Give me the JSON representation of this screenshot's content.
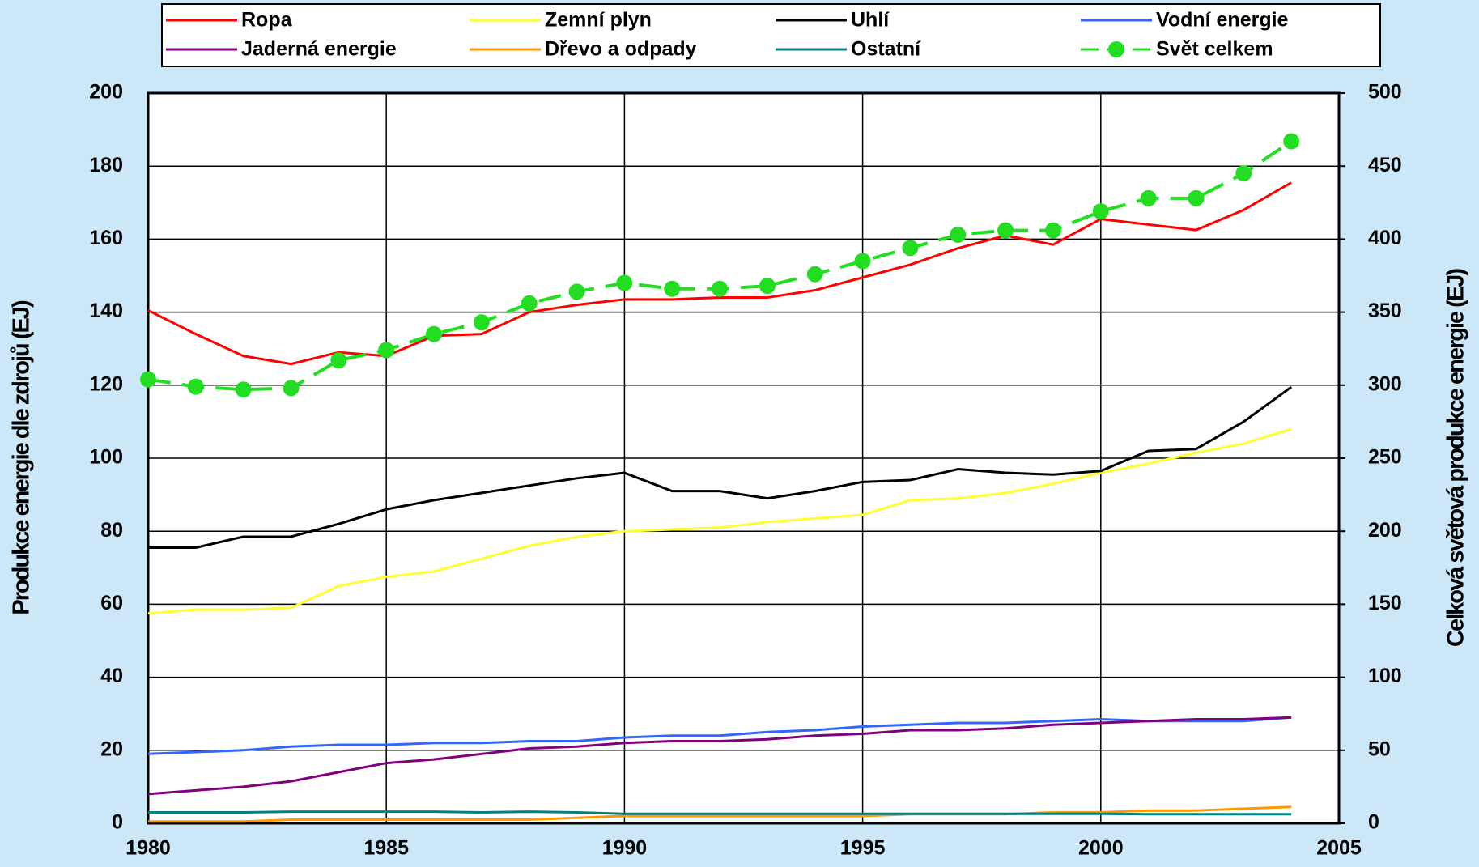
{
  "chart_data": {
    "type": "line",
    "y_label": "Produkce energie dle zdrojů (EJ)",
    "y2_label": "Celková světová produkce energie (EJ)",
    "x": [
      1980,
      1981,
      1982,
      1983,
      1984,
      1985,
      1986,
      1987,
      1988,
      1989,
      1990,
      1991,
      1992,
      1993,
      1994,
      1995,
      1996,
      1997,
      1998,
      1999,
      2000,
      2001,
      2002,
      2003,
      2004
    ],
    "xlim": [
      1980,
      2005
    ],
    "xticks": [
      1980,
      1985,
      1990,
      1995,
      2000,
      2005
    ],
    "ylim": [
      0,
      200
    ],
    "yticks": [
      0,
      20,
      40,
      60,
      80,
      100,
      120,
      140,
      160,
      180,
      200
    ],
    "y2lim": [
      0,
      500
    ],
    "y2ticks": [
      0,
      50,
      100,
      150,
      200,
      250,
      300,
      350,
      400,
      450,
      500
    ],
    "grid": true,
    "series": [
      {
        "name": "Ropa",
        "color": "#ff0000",
        "values": [
          140.5,
          134,
          128,
          125.8,
          129,
          128,
          133.5,
          134,
          140,
          142,
          143.5,
          143.5,
          144,
          144,
          146,
          149.5,
          153,
          157.5,
          161,
          158.5,
          165.5,
          164,
          162.5,
          168,
          175.5
        ]
      },
      {
        "name": "Zemní plyn",
        "color": "#ffff33",
        "values": [
          57.5,
          58.5,
          58.5,
          59,
          65,
          67.5,
          69,
          72.5,
          76,
          78.5,
          80,
          80.5,
          81,
          82.5,
          83.5,
          84.5,
          88.5,
          89,
          90.5,
          93,
          96,
          98.5,
          101.5,
          104,
          108
        ]
      },
      {
        "name": "Uhlí",
        "color": "#000000",
        "values": [
          75.5,
          75.5,
          78.5,
          78.5,
          82,
          86,
          88.5,
          90.5,
          92.5,
          94.5,
          96,
          91,
          91,
          89,
          91,
          93.5,
          94,
          97,
          96,
          95.5,
          96.5,
          102,
          102.5,
          110,
          119.5
        ]
      },
      {
        "name": "Vodní energie",
        "color": "#3366ff",
        "values": [
          19,
          19.5,
          20,
          21,
          21.5,
          21.5,
          22,
          22,
          22.5,
          22.5,
          23.5,
          24,
          24,
          25,
          25.5,
          26.5,
          27,
          27.5,
          27.5,
          28,
          28.5,
          28,
          28,
          28,
          29
        ]
      },
      {
        "name": "Jaderná energie",
        "color": "#800080",
        "values": [
          8,
          9,
          10,
          11.5,
          14,
          16.5,
          17.5,
          19,
          20.5,
          21,
          22,
          22.5,
          22.5,
          23,
          24,
          24.5,
          25.5,
          25.5,
          26,
          27,
          27.5,
          28,
          28.5,
          28.5,
          29
        ]
      },
      {
        "name": "Dřevo a odpady",
        "color": "#ff9900",
        "values": [
          0.5,
          0.5,
          0.5,
          1,
          1,
          1,
          1,
          1,
          1,
          1.5,
          2,
          2,
          2,
          2,
          2,
          2,
          2.5,
          2.5,
          2.5,
          3,
          3,
          3.5,
          3.5,
          4,
          4.5
        ]
      },
      {
        "name": "Ostatní",
        "color": "#008080",
        "values": [
          3,
          3,
          3,
          3.2,
          3.2,
          3.2,
          3.2,
          3,
          3.2,
          3,
          2.6,
          2.6,
          2.6,
          2.6,
          2.6,
          2.6,
          2.6,
          2.6,
          2.6,
          2.6,
          2.6,
          2.5,
          2.5,
          2.5,
          2.5
        ]
      },
      {
        "name": "Svět celkem",
        "color": "#22dd22",
        "axis": "y2",
        "line_style": "dashed",
        "marker": "circle",
        "values": [
          304,
          299,
          297,
          298,
          317,
          324,
          335,
          343,
          356,
          364,
          370,
          366,
          366,
          368,
          376,
          385,
          394,
          403,
          406,
          406,
          419,
          428,
          428,
          445,
          467
        ]
      }
    ]
  }
}
